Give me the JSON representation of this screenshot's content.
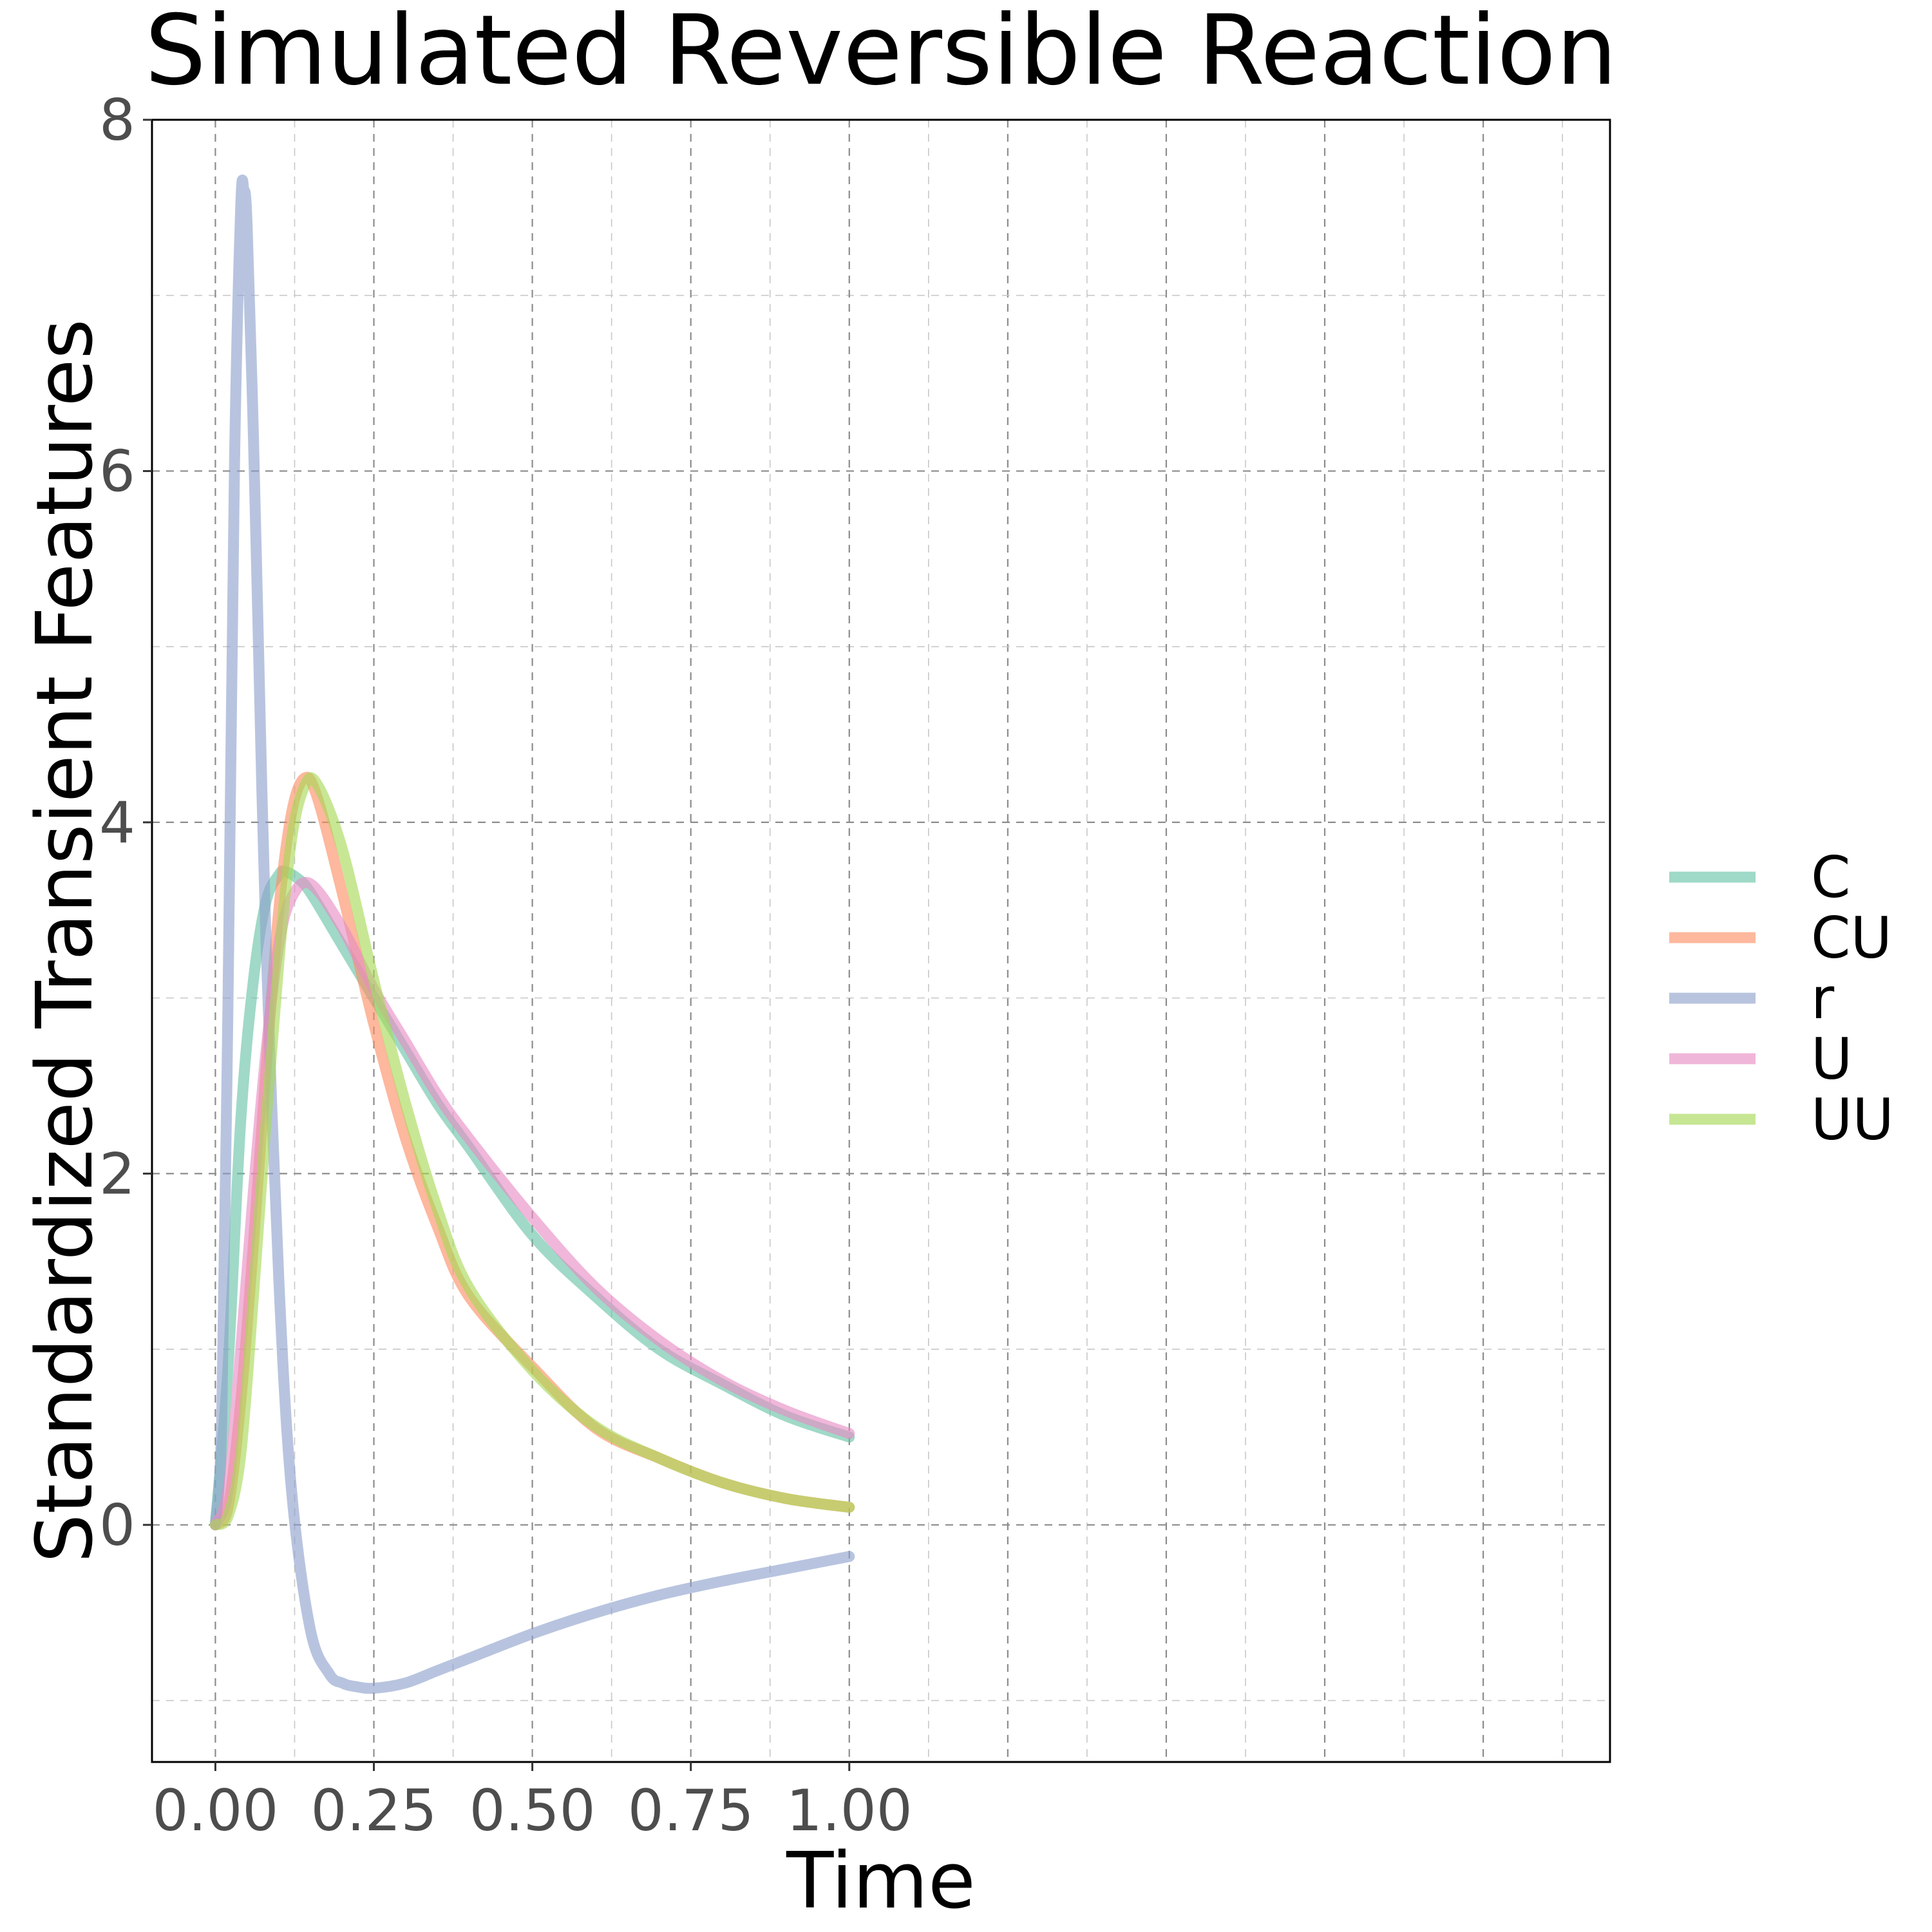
{
  "chart_data": {
    "type": "line",
    "title": "Simulated Reversible Reaction",
    "xlabel": "Time",
    "ylabel": "Standardized Transient Features",
    "xlim": [
      -0.1,
      2.2
    ],
    "ylim": [
      -1.35,
      8.0
    ],
    "x_ticks": [
      0,
      0.25,
      0.5,
      0.75,
      1.0
    ],
    "x_tick_labels": [
      "0.00",
      "0.25",
      "0.50",
      "0.75",
      "1.00"
    ],
    "y_ticks": [
      0,
      2,
      4,
      6,
      8
    ],
    "y_tick_labels": [
      "0",
      "2",
      "4",
      "6",
      "8"
    ],
    "grid": true,
    "legend_position": "right",
    "series": [
      {
        "name": "C",
        "color": "#66c2a5",
        "x": [
          0.0,
          0.02,
          0.04,
          0.06,
          0.08,
          0.1,
          0.11,
          0.13,
          0.15,
          0.2,
          0.25,
          0.3,
          0.35,
          0.4,
          0.5,
          0.6,
          0.7,
          0.8,
          0.9,
          1.0
        ],
        "y": [
          0.0,
          0.9,
          2.3,
          3.1,
          3.55,
          3.7,
          3.72,
          3.68,
          3.6,
          3.3,
          3.0,
          2.7,
          2.4,
          2.15,
          1.65,
          1.3,
          1.0,
          0.8,
          0.62,
          0.5
        ]
      },
      {
        "name": "CU",
        "color": "#fc8d62",
        "x": [
          0.0,
          0.02,
          0.04,
          0.06,
          0.08,
          0.1,
          0.12,
          0.14,
          0.16,
          0.2,
          0.25,
          0.3,
          0.35,
          0.4,
          0.5,
          0.6,
          0.7,
          0.8,
          0.9,
          1.0
        ],
        "y": [
          0.0,
          0.1,
          0.7,
          1.6,
          2.6,
          3.5,
          4.05,
          4.25,
          4.15,
          3.6,
          2.85,
          2.2,
          1.7,
          1.3,
          0.9,
          0.55,
          0.38,
          0.24,
          0.15,
          0.1
        ]
      },
      {
        "name": "r",
        "color": "#8da0cb",
        "x": [
          0.0,
          0.01,
          0.02,
          0.03,
          0.04,
          0.045,
          0.05,
          0.06,
          0.07,
          0.08,
          0.1,
          0.12,
          0.15,
          0.18,
          0.2,
          0.22,
          0.25,
          0.3,
          0.35,
          0.4,
          0.5,
          0.6,
          0.7,
          0.8,
          0.9,
          1.0
        ],
        "y": [
          0.0,
          0.6,
          3.0,
          6.0,
          7.5,
          7.6,
          7.4,
          6.2,
          4.7,
          3.3,
          1.4,
          0.2,
          -0.6,
          -0.85,
          -0.9,
          -0.92,
          -0.93,
          -0.9,
          -0.83,
          -0.76,
          -0.62,
          -0.5,
          -0.4,
          -0.32,
          -0.25,
          -0.18
        ]
      },
      {
        "name": "U",
        "color": "#e78ac3",
        "x": [
          0.0,
          0.02,
          0.04,
          0.06,
          0.08,
          0.1,
          0.12,
          0.15,
          0.2,
          0.25,
          0.3,
          0.35,
          0.4,
          0.5,
          0.6,
          0.7,
          0.8,
          0.9,
          1.0
        ],
        "y": [
          0.0,
          0.2,
          1.0,
          1.9,
          2.7,
          3.3,
          3.57,
          3.65,
          3.4,
          3.05,
          2.75,
          2.45,
          2.2,
          1.75,
          1.35,
          1.05,
          0.82,
          0.65,
          0.52
        ]
      },
      {
        "name": "UU",
        "color": "#a6d854",
        "x": [
          0.0,
          0.02,
          0.04,
          0.06,
          0.08,
          0.1,
          0.12,
          0.14,
          0.16,
          0.2,
          0.25,
          0.3,
          0.35,
          0.4,
          0.5,
          0.6,
          0.7,
          0.8,
          0.9,
          1.0
        ],
        "y": [
          0.0,
          0.05,
          0.4,
          1.3,
          2.3,
          3.2,
          3.9,
          4.2,
          4.22,
          3.85,
          3.1,
          2.4,
          1.8,
          1.35,
          0.88,
          0.56,
          0.38,
          0.24,
          0.15,
          0.1
        ]
      }
    ]
  }
}
